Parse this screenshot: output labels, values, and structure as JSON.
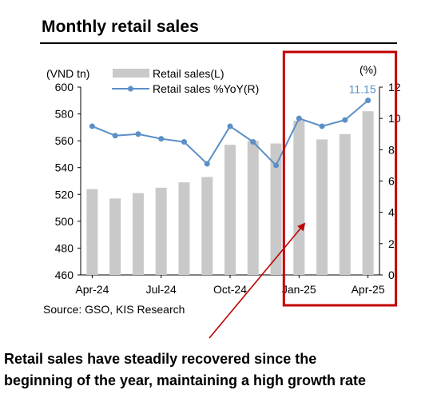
{
  "title": "Monthly retail sales",
  "source": "Source: GSO, KIS Research",
  "caption_lines": [
    "Retail sales have steadily recovered since the",
    "beginning of the year, maintaining a high growth rate"
  ],
  "colors": {
    "bar": "#c9c9c9",
    "line": "#5b8fc6",
    "highlight_box": "#c00000",
    "arrow": "#c00000"
  },
  "chart_data": {
    "type": "bar",
    "y_left_unit": "(VND tn)",
    "y_right_unit": "(%)",
    "y_left_ticks": [
      "600",
      "580",
      "560",
      "540",
      "520",
      "500",
      "480",
      "460"
    ],
    "y_right_ticks": [
      "12",
      "10",
      "8",
      "6",
      "4",
      "2",
      "0"
    ],
    "ylim_left": [
      460,
      600
    ],
    "ylim_right": [
      0,
      12
    ],
    "x_tick_labels": [
      {
        "index": 0,
        "label": "Apr-24"
      },
      {
        "index": 3,
        "label": "Jul-24"
      },
      {
        "index": 6,
        "label": "Oct-24"
      },
      {
        "index": 9,
        "label": "Jan-25"
      },
      {
        "index": 12,
        "label": "Apr-25"
      }
    ],
    "categories": [
      "Apr-24",
      "May-24",
      "Jun-24",
      "Jul-24",
      "Aug-24",
      "Sep-24",
      "Oct-24",
      "Nov-24",
      "Dec-24",
      "Jan-25",
      "Feb-25",
      "Mar-25",
      "Apr-25"
    ],
    "series": [
      {
        "name": "Retail sales(L)",
        "type": "bar",
        "axis": "left",
        "values": [
          524,
          517,
          521,
          525,
          529,
          533,
          557,
          560,
          558,
          575,
          561,
          565,
          582
        ]
      },
      {
        "name": "Retail sales %YoY(R)",
        "type": "line",
        "axis": "right",
        "values": [
          9.5,
          8.9,
          9.0,
          8.7,
          8.5,
          7.1,
          9.5,
          8.5,
          7.0,
          10.0,
          9.5,
          9.9,
          11.15
        ]
      }
    ],
    "annotations": [
      {
        "series_index": 1,
        "point_index": 12,
        "text": "11.15"
      }
    ],
    "highlight": {
      "from_category": "Jan-25",
      "to_category": "Apr-25"
    },
    "legend_position": "top-left",
    "grid": false
  }
}
